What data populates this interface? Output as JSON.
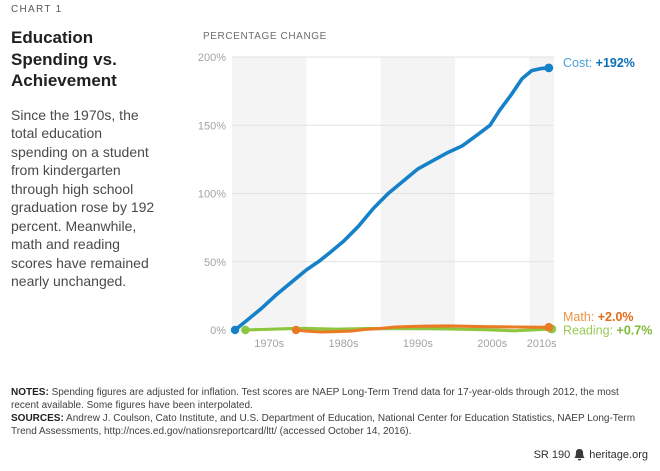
{
  "header": {
    "kicker": "CHART 1",
    "title": "Education\nSpending vs.\nAchievement",
    "description": "Since the 1970s, the\ntotal education\nspending on a student\nfrom kindergarten\nthrough high school\ngraduation rose by 192\npercent. Meanwhile,\nmath and reading\nscores have remained\nnearly unchanged."
  },
  "chart_data": {
    "type": "line",
    "title": "Education Spending vs. Achievement",
    "axis_title": "PERCENTAGE CHANGE",
    "xlabel": "",
    "ylabel": "Percentage change",
    "xlim": [
      1970,
      2013.3
    ],
    "ylim": [
      0,
      200
    ],
    "y_ticks": [
      0,
      50,
      100,
      150,
      200
    ],
    "y_tick_labels": [
      "0%",
      "50%",
      "100%",
      "150%",
      "200%"
    ],
    "x_tick_labels": [
      "1970s",
      "1980s",
      "1990s",
      "2000s",
      "2010s"
    ],
    "grid": "horizontal",
    "legend_position": "right-of-line-ends",
    "shaded_decades": [
      1970,
      1990,
      2010
    ],
    "band_color": "#f4f4f4",
    "grid_color": "#e2e2e2",
    "series": [
      {
        "name": "Cost",
        "label": "Cost:",
        "value_label": "+192%",
        "final_value": 192,
        "color": "#1581c9",
        "label_color": "#4ba1d8",
        "value_color": "#0b6fb7",
        "points": [
          [
            1970.4,
            0
          ],
          [
            1972,
            7
          ],
          [
            1974,
            16
          ],
          [
            1976,
            26
          ],
          [
            1978,
            35
          ],
          [
            1980,
            44
          ],
          [
            1981.6,
            50
          ],
          [
            1983,
            56
          ],
          [
            1985,
            65
          ],
          [
            1987,
            76
          ],
          [
            1989,
            89
          ],
          [
            1991,
            100
          ],
          [
            1993,
            109
          ],
          [
            1995,
            118
          ],
          [
            1997,
            124
          ],
          [
            1999,
            130
          ],
          [
            2001,
            135
          ],
          [
            2003,
            143
          ],
          [
            2004.7,
            150
          ],
          [
            2006,
            161
          ],
          [
            2007.5,
            172
          ],
          [
            2009,
            184
          ],
          [
            2010.3,
            190
          ],
          [
            2011.5,
            191.5
          ],
          [
            2012.6,
            192
          ]
        ]
      },
      {
        "name": "Math",
        "label": "Math:",
        "value_label": "+2.0%",
        "final_value": 2.0,
        "color": "#ea7b25",
        "label_color": "#ed9246",
        "value_color": "#e06c15",
        "points": [
          [
            1978.6,
            0
          ],
          [
            1980,
            -0.8
          ],
          [
            1982,
            -1.5
          ],
          [
            1984,
            -1.2
          ],
          [
            1986,
            -0.8
          ],
          [
            1988,
            0.5
          ],
          [
            1990,
            1.2
          ],
          [
            1992,
            2.2
          ],
          [
            1994,
            2.6
          ],
          [
            1996,
            2.8
          ],
          [
            1999,
            3.0
          ],
          [
            2001,
            2.8
          ],
          [
            2004,
            2.4
          ],
          [
            2008,
            2.2
          ],
          [
            2012.6,
            2.0
          ]
        ]
      },
      {
        "name": "Reading",
        "label": "Reading:",
        "value_label": "+0.7%",
        "final_value": 0.7,
        "color": "#8dc63f",
        "label_color": "#9bcb57",
        "value_color": "#7eb933",
        "points": [
          [
            1971.8,
            0
          ],
          [
            1974,
            0.4
          ],
          [
            1978,
            1.0
          ],
          [
            1980,
            1.2
          ],
          [
            1984,
            0.6
          ],
          [
            1988,
            1.0
          ],
          [
            1992,
            1.1
          ],
          [
            1996,
            1.0
          ],
          [
            1999,
            0.7
          ],
          [
            2004,
            0.2
          ],
          [
            2008,
            -0.6
          ],
          [
            2013.0,
            0.7
          ]
        ]
      }
    ]
  },
  "notes": {
    "label": "NOTES:",
    "text": "Spending figures are adjusted for inflation. Test scores are NAEP Long-Term Trend data for 17-year-olds through 2012, the most\nrecent available. Some figures have been interpolated."
  },
  "sources": {
    "label": "SOURCES:",
    "text": "Andrew J. Coulson, Cato Institute, and U.S. Department of Education, National Center for Education Statistics, NAEP Long-Term\nTrend Assessments, http://nces.ed.gov/nationsreportcard/ltt/ (accessed October 14, 2016)."
  },
  "footer": {
    "report_id": "SR 190",
    "site": "heritage.org",
    "logo": "heritage-bell-icon"
  }
}
